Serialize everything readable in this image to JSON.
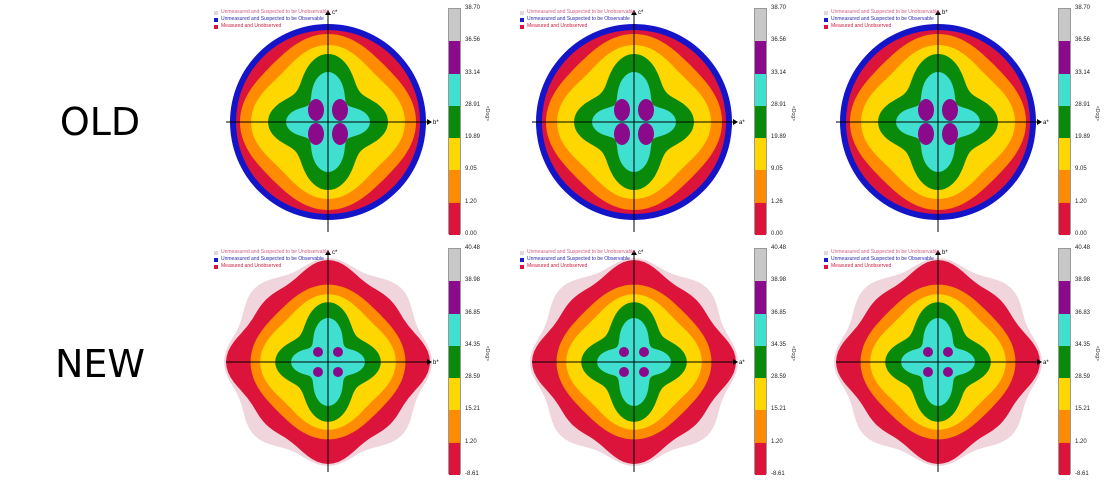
{
  "rows": [
    {
      "label": "OLD"
    },
    {
      "label": "NEW"
    }
  ],
  "legend_entries": [
    {
      "label": "Unmeasured and Suspected to be Unobservable",
      "color": "#e9d4dc"
    },
    {
      "label": "Unmeasured and Suspected to be Observable",
      "color": "#1a1ad0"
    },
    {
      "label": "Measured and Unobserved",
      "color": "#dc143c"
    }
  ],
  "colorbar_label": "<Dog>",
  "colors": {
    "gray": "#c8c8c8",
    "purple": "#8b0a8b",
    "cyan": "#40e0d0",
    "green": "#0a8a0a",
    "yellow": "#ffd700",
    "orange": "#ff8c00",
    "red": "#dc143c",
    "blue": "#1414c8",
    "pink": "#f0d6dc"
  },
  "chart_data": [
    {
      "type": "heatmap",
      "row": "OLD",
      "panel": 1,
      "ylabel": "c*",
      "xlabel": "b*",
      "colorbar_ticks": [
        "38.70",
        "36.56",
        "33.14",
        "28.91",
        "19.89",
        "9.05",
        "1.20",
        "0.00"
      ]
    },
    {
      "type": "heatmap",
      "row": "OLD",
      "panel": 2,
      "ylabel": "c*",
      "xlabel": "a*",
      "colorbar_ticks": [
        "38.70",
        "36.56",
        "33.14",
        "28.91",
        "19.89",
        "9.05",
        "1.26",
        "0.00"
      ]
    },
    {
      "type": "heatmap",
      "row": "OLD",
      "panel": 3,
      "ylabel": "b*",
      "xlabel": "a*",
      "colorbar_ticks": [
        "38.70",
        "36.56",
        "33.14",
        "28.91",
        "19.89",
        "9.05",
        "1.20",
        "0.00"
      ]
    },
    {
      "type": "heatmap",
      "row": "NEW",
      "panel": 1,
      "ylabel": "c*",
      "xlabel": "b*",
      "colorbar_ticks": [
        "40.48",
        "38.98",
        "36.85",
        "34.35",
        "28.59",
        "15.21",
        "1.20",
        "-8.61"
      ]
    },
    {
      "type": "heatmap",
      "row": "NEW",
      "panel": 2,
      "ylabel": "c*",
      "xlabel": "a*",
      "colorbar_ticks": [
        "40.48",
        "38.98",
        "36.85",
        "34.35",
        "28.59",
        "15.21",
        "1.20",
        "-8.61"
      ]
    },
    {
      "type": "heatmap",
      "row": "NEW",
      "panel": 3,
      "ylabel": "b*",
      "xlabel": "a*",
      "colorbar_ticks": [
        "40.48",
        "38.98",
        "36.83",
        "34.35",
        "28.59",
        "15.21",
        "1.20",
        "-8.61"
      ]
    }
  ]
}
